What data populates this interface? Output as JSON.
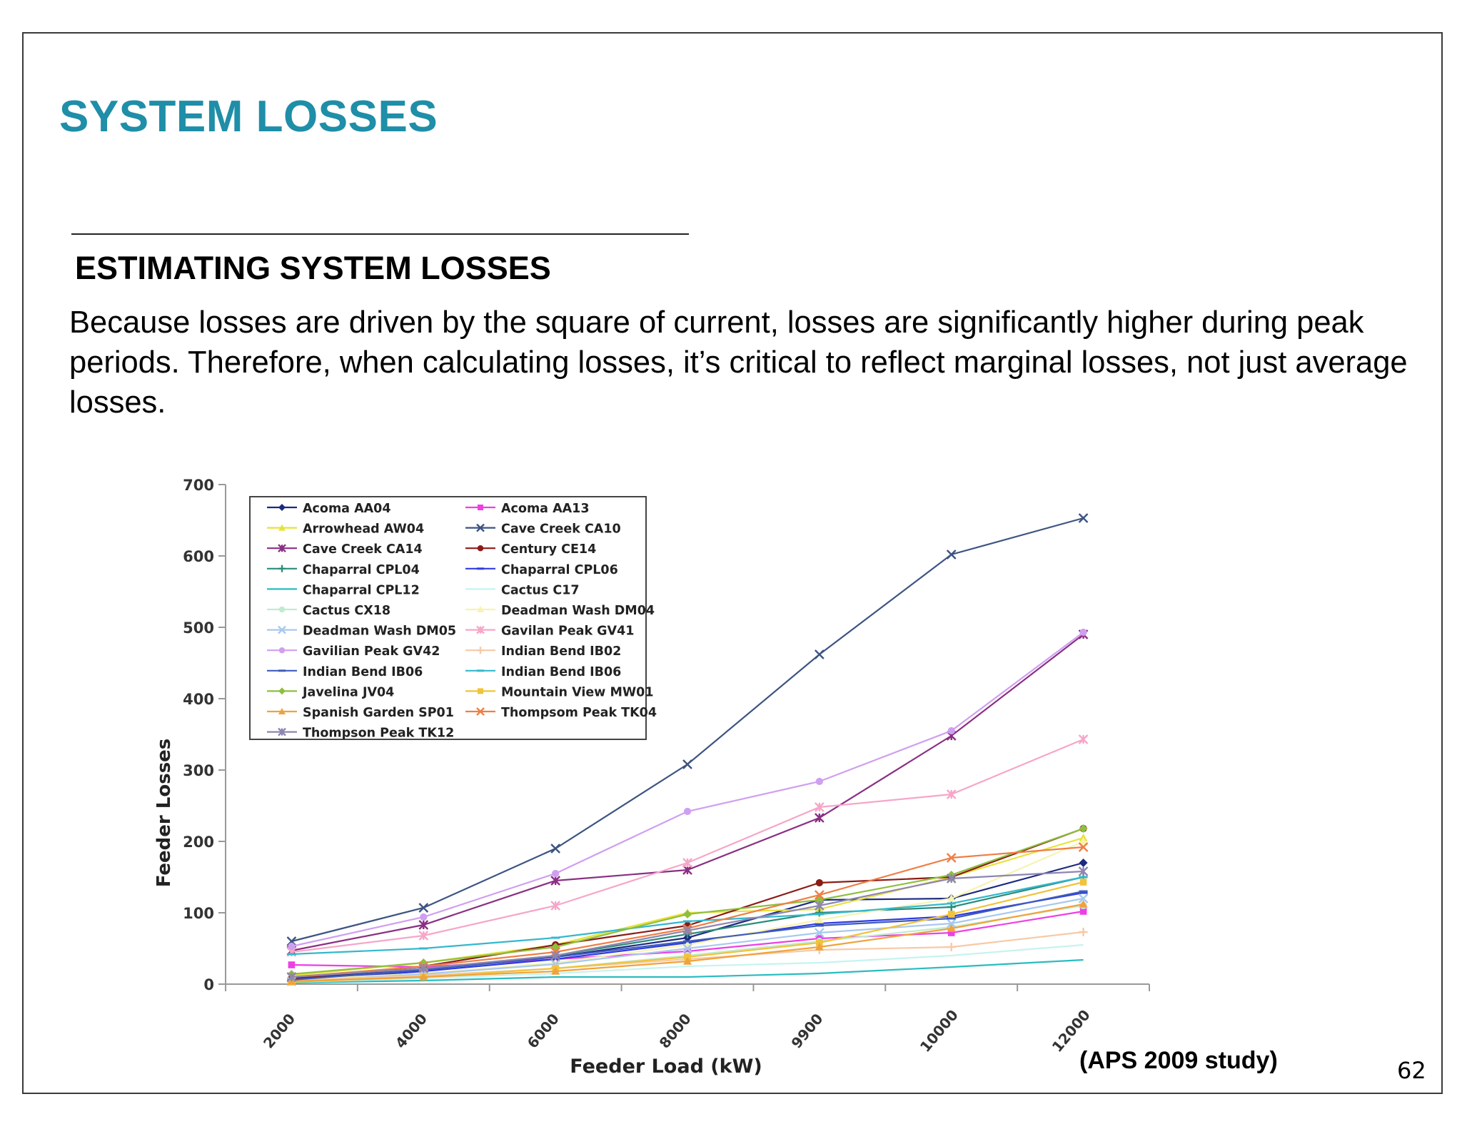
{
  "slide": {
    "title": "SYSTEM LOSSES",
    "subtitle": "ESTIMATING SYSTEM LOSSES",
    "body": "Because losses are driven by the square of current, losses are significantly higher during peak periods.  Therefore, when calculating losses, it’s critical to reflect marginal losses, not just average losses.",
    "caption": "(APS 2009 study)",
    "page_number": "62",
    "title_color": "#1f8ea8"
  },
  "chart_data": {
    "type": "line",
    "title": "",
    "xlabel": "Feeder Load (kW)",
    "ylabel": "Feeder Losses",
    "categories": [
      "2000",
      "4000",
      "6000",
      "8000",
      "9900",
      "10000",
      "12000"
    ],
    "ylim": [
      0,
      700
    ],
    "yticks": [
      0,
      100,
      200,
      300,
      400,
      500,
      600,
      700
    ],
    "grid": false,
    "legend": "top-left, two columns, boxed",
    "series": [
      {
        "name": "Acoma AA04",
        "color": "#1c2a80",
        "marker": "diamond",
        "values": [
          8,
          22,
          38,
          65,
          118,
          120,
          170
        ]
      },
      {
        "name": "Acoma AA13",
        "color": "#ee3fe6",
        "marker": "square",
        "values": [
          27,
          24,
          35,
          46,
          64,
          72,
          102
        ]
      },
      {
        "name": "Arrowhead AW04",
        "color": "#e8e23a",
        "marker": "triangle",
        "values": [
          12,
          30,
          55,
          100,
          105,
          150,
          205
        ]
      },
      {
        "name": "Cave Creek CA10",
        "color": "#3d5482",
        "marker": "x",
        "values": [
          60,
          107,
          190,
          308,
          462,
          602,
          653
        ]
      },
      {
        "name": "Cave Creek CA14",
        "color": "#8a2f83",
        "marker": "star",
        "values": [
          47,
          83,
          145,
          160,
          233,
          348,
          490
        ]
      },
      {
        "name": "Century CE14",
        "color": "#8b1c16",
        "marker": "circle",
        "values": [
          8,
          25,
          55,
          82,
          142,
          150,
          218
        ]
      },
      {
        "name": "Chaparral CPL04",
        "color": "#2a8c7a",
        "marker": "plus",
        "values": [
          5,
          20,
          40,
          70,
          100,
          108,
          150
        ]
      },
      {
        "name": "Chaparral CPL06",
        "color": "#2f3be0",
        "marker": "dash",
        "values": [
          4,
          18,
          35,
          58,
          85,
          95,
          128
        ]
      },
      {
        "name": "Chaparral CPL12",
        "color": "#2abcc0",
        "marker": "none",
        "values": [
          2,
          5,
          10,
          10,
          15,
          24,
          34
        ]
      },
      {
        "name": "Cactus C17",
        "color": "#c5f4ef",
        "marker": "none",
        "values": [
          3,
          8,
          15,
          25,
          30,
          40,
          55
        ]
      },
      {
        "name": "Cactus CX18",
        "color": "#bfeccf",
        "marker": "circle",
        "values": [
          5,
          12,
          22,
          40,
          60,
          80,
          110
        ]
      },
      {
        "name": "Deadman Wash DM04",
        "color": "#f7f3b0",
        "marker": "triangle",
        "values": [
          6,
          15,
          30,
          55,
          90,
          120,
          200
        ]
      },
      {
        "name": "Deadman Wash DM05",
        "color": "#a7c9ef",
        "marker": "x",
        "values": [
          4,
          14,
          28,
          50,
          72,
          85,
          120
        ]
      },
      {
        "name": "Gavilan Peak GV41",
        "color": "#f6a6c8",
        "marker": "star",
        "values": [
          45,
          68,
          110,
          170,
          248,
          266,
          343
        ]
      },
      {
        "name": "Gavilian Peak GV42",
        "color": "#cf9ff0",
        "marker": "circle",
        "values": [
          53,
          94,
          155,
          242,
          284,
          355,
          493
        ]
      },
      {
        "name": "Indian Bend IB02",
        "color": "#f7c9a6",
        "marker": "plus",
        "values": [
          5,
          12,
          22,
          35,
          48,
          52,
          73
        ]
      },
      {
        "name": "Indian Bend IB06",
        "color": "#3e5cba",
        "marker": "dash",
        "values": [
          6,
          20,
          38,
          60,
          82,
          92,
          130
        ]
      },
      {
        "name": "Indian Bend IB06",
        "color": "#33b8cd",
        "marker": "dash",
        "values": [
          42,
          50,
          65,
          88,
          98,
          113,
          150
        ]
      },
      {
        "name": "Javelina JV04",
        "color": "#8fbf3e",
        "marker": "diamond",
        "values": [
          14,
          30,
          52,
          98,
          118,
          153,
          218
        ]
      },
      {
        "name": "Mountain View MW01",
        "color": "#f1c33b",
        "marker": "square",
        "values": [
          3,
          10,
          22,
          38,
          58,
          98,
          143
        ]
      },
      {
        "name": "Spanish Garden SP01",
        "color": "#f0a23c",
        "marker": "triangle",
        "values": [
          4,
          10,
          18,
          32,
          52,
          78,
          112
        ]
      },
      {
        "name": "Thompsom Peak TK04",
        "color": "#ee7f45",
        "marker": "x",
        "values": [
          10,
          25,
          45,
          78,
          125,
          177,
          192
        ]
      },
      {
        "name": "Thompson Peak TK12",
        "color": "#8d86b0",
        "marker": "star",
        "values": [
          10,
          22,
          40,
          75,
          110,
          148,
          158
        ]
      }
    ]
  }
}
